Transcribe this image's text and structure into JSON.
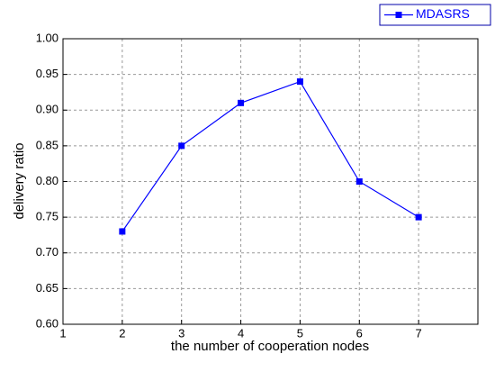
{
  "chart_data": {
    "type": "line",
    "x_label": "the number of cooperation nodes",
    "y_label": "delivery ratio",
    "x": [
      2,
      3,
      4,
      5,
      6,
      7
    ],
    "series": [
      {
        "name": "MDASRS",
        "color": "#0000ff",
        "values": [
          0.73,
          0.85,
          0.91,
          0.94,
          0.8,
          0.75
        ]
      }
    ],
    "xlim": [
      1,
      8
    ],
    "xticks": [
      1,
      2,
      3,
      4,
      5,
      6,
      7
    ],
    "ylim": [
      0.6,
      1.0
    ],
    "yticks": [
      {
        "value": 0.6,
        "label": "0.60"
      },
      {
        "value": 0.65,
        "label": "0.65"
      },
      {
        "value": 0.7,
        "label": "0.70"
      },
      {
        "value": 0.75,
        "label": "0.75"
      },
      {
        "value": 0.8,
        "label": "0.80"
      },
      {
        "value": 0.85,
        "label": "0.85"
      },
      {
        "value": 0.9,
        "label": "0.90"
      },
      {
        "value": 0.95,
        "label": "0.95"
      },
      {
        "value": 1.0,
        "label": "1.00"
      }
    ],
    "grid": true,
    "legend": "top-right"
  }
}
